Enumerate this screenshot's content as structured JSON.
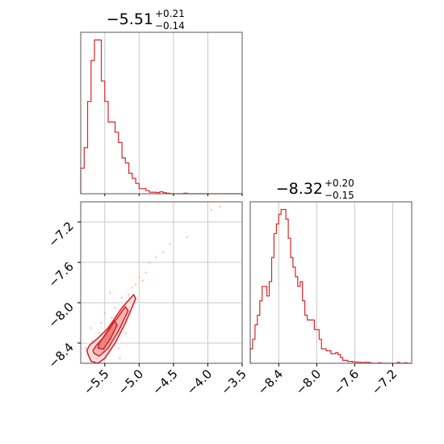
{
  "chart_data": [
    {
      "type": "histogram",
      "panel": "top-left",
      "title": {
        "main": "−5.51",
        "plus": "+0.21",
        "minus": "−0.14"
      },
      "xlim": [
        -5.85,
        -3.5
      ],
      "bin_edges_start": -5.85,
      "bin_width": 0.05,
      "counts": [
        5,
        9,
        18,
        26,
        30,
        30,
        22,
        18,
        14,
        14,
        12,
        10,
        7,
        6,
        4,
        3,
        2,
        1,
        1,
        0.6,
        0.3,
        0.3,
        0.2,
        0.4,
        0.2,
        0.1,
        0,
        0,
        0,
        0,
        0.1,
        0,
        0,
        0,
        0,
        0,
        0,
        0,
        0,
        0,
        0,
        0,
        0,
        0,
        0,
        0,
        0
      ],
      "gridlines_x": [
        -5.5,
        -5.0,
        -4.5,
        -4.0
      ],
      "color": "#d62728"
    },
    {
      "type": "histogram",
      "panel": "bottom-right",
      "title": {
        "main": "−8.32",
        "plus": "+0.20",
        "minus": "−0.15"
      },
      "xlim": [
        -8.7,
        -7.0
      ],
      "bin_edges_start": -8.7,
      "bin_width": 0.025,
      "counts": [
        3,
        5,
        8,
        10,
        13,
        16,
        16,
        14,
        17,
        22,
        27,
        29,
        31,
        32,
        32,
        30,
        26,
        22,
        20,
        18,
        16,
        17,
        13,
        10,
        9,
        9,
        9,
        7,
        7,
        5,
        3,
        3,
        2.6,
        2.6,
        2,
        2,
        2.2,
        1.8,
        1.2,
        0.6,
        0.6,
        0.4,
        0.4,
        0.3,
        0.3,
        0.2,
        0.2,
        0.1,
        0.2,
        0.2,
        0.1,
        0,
        0,
        0,
        0.1,
        0,
        0,
        0,
        0,
        0,
        0,
        0,
        0.2,
        0,
        0,
        0.1,
        0,
        0
      ],
      "gridlines_x": [
        -8.4,
        -8.0,
        -7.6,
        -7.2
      ],
      "xticks": [
        -8.4,
        -8.0,
        -7.6,
        -7.2
      ],
      "xtick_labels": [
        "−8.4",
        "−8.0",
        "−7.6",
        "−7.2"
      ],
      "color": "#d62728"
    },
    {
      "type": "scatter-contour",
      "panel": "bottom-left",
      "xlim": [
        -5.85,
        -3.5
      ],
      "ylim": [
        -8.6,
        -7.0
      ],
      "xticks": [
        -5.5,
        -5.0,
        -4.5,
        -4.0,
        -3.5
      ],
      "xtick_labels": [
        "−5.5",
        "−5.0",
        "−4.5",
        "−4.0",
        "−3.5"
      ],
      "yticks": [
        -7.2,
        -7.6,
        -8.0,
        -8.4
      ],
      "ytick_labels": [
        "−7.2",
        "−7.6",
        "−8.0",
        "−8.4"
      ],
      "color": "#d62728",
      "contours": [
        {
          "level": "outer",
          "x": [
            -5.75,
            -5.7,
            -5.6,
            -5.5,
            -5.35,
            -5.2,
            -5.05,
            -5.08,
            -5.25,
            -5.45,
            -5.6,
            -5.72,
            -5.76
          ],
          "y": [
            -8.5,
            -8.58,
            -8.6,
            -8.55,
            -8.4,
            -8.2,
            -7.96,
            -7.92,
            -8.05,
            -8.25,
            -8.35,
            -8.42,
            -8.47
          ]
        },
        {
          "level": "middle",
          "x": [
            -5.66,
            -5.58,
            -5.45,
            -5.3,
            -5.16,
            -5.2,
            -5.35,
            -5.5,
            -5.62,
            -5.67
          ],
          "y": [
            -8.5,
            -8.53,
            -8.45,
            -8.28,
            -8.08,
            -8.04,
            -8.18,
            -8.33,
            -8.42,
            -8.47
          ]
        },
        {
          "level": "inner",
          "x": [
            -5.6,
            -5.52,
            -5.42,
            -5.32,
            -5.36,
            -5.48,
            -5.58
          ],
          "y": [
            -8.45,
            -8.46,
            -8.36,
            -8.22,
            -8.18,
            -8.3,
            -8.4
          ]
        }
      ],
      "scatter": [
        {
          "x": -5.78,
          "y": -8.45
        },
        {
          "x": -5.72,
          "y": -8.5
        },
        {
          "x": -5.68,
          "y": -8.38
        },
        {
          "x": -5.62,
          "y": -8.55
        },
        {
          "x": -5.58,
          "y": -8.3
        },
        {
          "x": -5.55,
          "y": -8.2
        },
        {
          "x": -5.5,
          "y": -8.1
        },
        {
          "x": -5.45,
          "y": -8.5
        },
        {
          "x": -5.4,
          "y": -8.15
        },
        {
          "x": -5.35,
          "y": -8.05
        },
        {
          "x": -5.3,
          "y": -8.45
        },
        {
          "x": -5.25,
          "y": -7.95
        },
        {
          "x": -5.2,
          "y": -8.3
        },
        {
          "x": -5.15,
          "y": -7.92
        },
        {
          "x": -5.1,
          "y": -7.85
        },
        {
          "x": -5.05,
          "y": -7.82
        },
        {
          "x": -5.0,
          "y": -7.75
        },
        {
          "x": -4.95,
          "y": -7.78
        },
        {
          "x": -4.9,
          "y": -7.7
        },
        {
          "x": -4.85,
          "y": -7.6
        },
        {
          "x": -4.75,
          "y": -7.55
        },
        {
          "x": -4.65,
          "y": -7.5
        },
        {
          "x": -4.55,
          "y": -7.42
        },
        {
          "x": -4.3,
          "y": -7.35
        },
        {
          "x": -3.95,
          "y": -7.08
        },
        {
          "x": -3.82,
          "y": -7.05
        },
        {
          "x": -5.6,
          "y": -8.48
        },
        {
          "x": -5.7,
          "y": -8.25
        },
        {
          "x": -5.42,
          "y": -7.9
        },
        {
          "x": -5.28,
          "y": -8.55
        }
      ]
    }
  ]
}
